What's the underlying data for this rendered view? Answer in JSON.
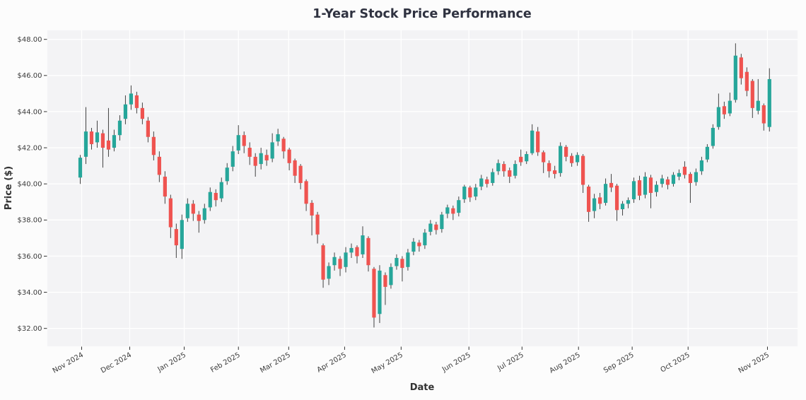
{
  "page": {
    "background": "#fcfcfc"
  },
  "chart_data": {
    "type": "candlestick",
    "title": "1-Year Stock Price Performance",
    "xlabel": "Date",
    "ylabel": "Price ($)",
    "grid": true,
    "legend": null,
    "ylim": [
      31.05,
      48.45
    ],
    "y_ticks": [
      {
        "label": "$32.00",
        "value": 32
      },
      {
        "label": "$34.00",
        "value": 34
      },
      {
        "label": "$36.00",
        "value": 36
      },
      {
        "label": "$38.00",
        "value": 38
      },
      {
        "label": "$40.00",
        "value": 40
      },
      {
        "label": "$42.00",
        "value": 42
      },
      {
        "label": "$44.00",
        "value": 44
      },
      {
        "label": "$46.00",
        "value": 46
      },
      {
        "label": "$48.00",
        "value": 48
      }
    ],
    "x_ticks": [
      {
        "label": "Nov 2024",
        "index": 0.25
      },
      {
        "label": "Dec 2024",
        "index": 8.76
      },
      {
        "label": "Jan 2025",
        "index": 18.4
      },
      {
        "label": "Feb 2025",
        "index": 28.0
      },
      {
        "label": "Mar 2025",
        "index": 36.9
      },
      {
        "label": "Apr 2025",
        "index": 46.8
      },
      {
        "label": "May 2025",
        "index": 56.8
      },
      {
        "label": "Jun 2025",
        "index": 68.8
      },
      {
        "label": "Jul 2025",
        "index": 78.2
      },
      {
        "label": "Aug 2025",
        "index": 88.2
      },
      {
        "label": "Sep 2025",
        "index": 97.7
      },
      {
        "label": "Oct 2025",
        "index": 107.6
      },
      {
        "label": "Nov 2025",
        "index": 121.65
      }
    ],
    "colors": {
      "up": "#26a69a",
      "down": "#ef5350",
      "wick": "#424242",
      "plot_bg": "#f3f3f5",
      "grid": "#ffffff",
      "title": "#2f3240",
      "axis_label": "#333333",
      "tick_text": "#3a3a3a",
      "tick_mark": "#333333"
    },
    "candles": [
      [
        "2024-11-01",
        40.35,
        41.6,
        40.0,
        41.45
      ],
      [
        "2024-11-04",
        41.5,
        44.25,
        41.1,
        42.9
      ],
      [
        "2024-11-08",
        42.9,
        43.1,
        41.9,
        42.2
      ],
      [
        "2024-11-11",
        42.3,
        43.5,
        42.0,
        42.85
      ],
      [
        "2024-11-15",
        42.8,
        43.0,
        40.9,
        42.0
      ],
      [
        "2024-11-18",
        42.4,
        44.2,
        41.5,
        41.9
      ],
      [
        "2024-11-22",
        42.0,
        43.0,
        41.8,
        42.7
      ],
      [
        "2024-11-25",
        42.7,
        43.8,
        42.4,
        43.5
      ],
      [
        "2024-11-29",
        43.6,
        44.9,
        43.3,
        44.4
      ],
      [
        "2024-12-01",
        44.4,
        45.45,
        44.1,
        45.0
      ],
      [
        "2024-12-04",
        44.9,
        45.1,
        43.9,
        44.2
      ],
      [
        "2024-12-07",
        44.2,
        44.5,
        43.3,
        43.6
      ],
      [
        "2024-12-10",
        43.5,
        43.7,
        42.3,
        42.6
      ],
      [
        "2024-12-13",
        42.6,
        42.9,
        41.3,
        41.6
      ],
      [
        "2024-12-16",
        41.5,
        41.8,
        40.1,
        40.5
      ],
      [
        "2024-12-19",
        40.4,
        40.7,
        38.9,
        39.3
      ],
      [
        "2024-12-22",
        39.2,
        39.4,
        37.0,
        37.6
      ],
      [
        "2024-12-25",
        37.5,
        37.8,
        35.9,
        36.6
      ],
      [
        "2024-12-28",
        36.4,
        38.3,
        35.85,
        38.0
      ],
      [
        "2025-01-01",
        38.1,
        39.2,
        37.9,
        38.9
      ],
      [
        "2025-01-04",
        38.9,
        39.1,
        37.95,
        38.35
      ],
      [
        "2025-01-08",
        38.3,
        38.5,
        37.3,
        37.95
      ],
      [
        "2025-01-11",
        38.0,
        38.9,
        37.8,
        38.65
      ],
      [
        "2025-01-15",
        38.7,
        39.8,
        38.5,
        39.55
      ],
      [
        "2025-01-18",
        39.5,
        39.7,
        38.75,
        39.1
      ],
      [
        "2025-01-22",
        39.2,
        40.35,
        39.0,
        40.1
      ],
      [
        "2025-01-25",
        40.15,
        41.15,
        39.95,
        40.9
      ],
      [
        "2025-01-29",
        40.95,
        42.1,
        40.7,
        41.8
      ],
      [
        "2025-02-01",
        41.85,
        43.25,
        41.65,
        42.7
      ],
      [
        "2025-02-04",
        42.7,
        42.9,
        41.7,
        42.1
      ],
      [
        "2025-02-07",
        42.0,
        42.3,
        41.05,
        41.5
      ],
      [
        "2025-02-10",
        41.5,
        41.7,
        40.4,
        41.0
      ],
      [
        "2025-02-13",
        41.1,
        42.0,
        40.8,
        41.7
      ],
      [
        "2025-02-16",
        41.6,
        41.9,
        41.0,
        41.3
      ],
      [
        "2025-02-19",
        41.4,
        42.8,
        41.2,
        42.3
      ],
      [
        "2025-02-23",
        42.35,
        43.05,
        42.1,
        42.75
      ],
      [
        "2025-02-26",
        42.5,
        42.6,
        41.4,
        41.8
      ],
      [
        "2025-03-01",
        41.9,
        42.0,
        40.75,
        41.15
      ],
      [
        "2025-03-04",
        41.3,
        41.4,
        40.05,
        40.45
      ],
      [
        "2025-03-07",
        41.0,
        41.1,
        39.7,
        40.05
      ],
      [
        "2025-03-10",
        40.15,
        40.25,
        38.5,
        38.9
      ],
      [
        "2025-03-13",
        38.95,
        39.1,
        37.15,
        38.25
      ],
      [
        "2025-03-16",
        38.3,
        38.45,
        36.7,
        37.2
      ],
      [
        "2025-03-19",
        36.6,
        36.7,
        34.25,
        34.7
      ],
      [
        "2025-03-22",
        34.75,
        35.65,
        34.4,
        35.45
      ],
      [
        "2025-03-25",
        35.5,
        36.2,
        35.2,
        35.95
      ],
      [
        "2025-03-28",
        35.85,
        36.0,
        34.9,
        35.3
      ],
      [
        "2025-04-01",
        35.4,
        36.5,
        35.1,
        36.2
      ],
      [
        "2025-04-04",
        36.2,
        36.7,
        35.9,
        36.45
      ],
      [
        "2025-04-07",
        36.5,
        36.6,
        35.6,
        36.0
      ],
      [
        "2025-04-10",
        36.1,
        37.65,
        35.9,
        37.15
      ],
      [
        "2025-04-13",
        37.0,
        37.1,
        35.15,
        35.5
      ],
      [
        "2025-04-16",
        35.3,
        35.4,
        32.05,
        32.6
      ],
      [
        "2025-04-19",
        32.8,
        35.5,
        32.3,
        35.2
      ],
      [
        "2025-04-22",
        34.95,
        35.1,
        33.3,
        34.3
      ],
      [
        "2025-04-25",
        34.4,
        35.6,
        34.2,
        35.4
      ],
      [
        "2025-04-28",
        35.45,
        36.1,
        35.25,
        35.9
      ],
      [
        "2025-05-01",
        35.85,
        36.0,
        34.6,
        35.35
      ],
      [
        "2025-05-03",
        35.4,
        36.4,
        35.2,
        36.2
      ],
      [
        "2025-05-06",
        36.25,
        37.0,
        36.05,
        36.8
      ],
      [
        "2025-05-09",
        36.75,
        36.9,
        36.25,
        36.55
      ],
      [
        "2025-05-11",
        36.6,
        37.5,
        36.4,
        37.3
      ],
      [
        "2025-05-14",
        37.35,
        38.0,
        37.15,
        37.8
      ],
      [
        "2025-05-16",
        37.75,
        37.9,
        37.2,
        37.45
      ],
      [
        "2025-05-19",
        37.5,
        38.45,
        37.3,
        38.3
      ],
      [
        "2025-05-22",
        38.35,
        38.85,
        38.1,
        38.7
      ],
      [
        "2025-05-24",
        38.65,
        38.8,
        38.0,
        38.35
      ],
      [
        "2025-05-27",
        38.4,
        39.3,
        38.2,
        39.1
      ],
      [
        "2025-05-29",
        39.15,
        39.95,
        38.95,
        39.85
      ],
      [
        "2025-06-01",
        39.8,
        39.9,
        39.0,
        39.25
      ],
      [
        "2025-06-04",
        39.3,
        40.0,
        39.1,
        39.8
      ],
      [
        "2025-06-07",
        39.85,
        40.5,
        39.65,
        40.3
      ],
      [
        "2025-06-10",
        40.25,
        40.4,
        39.8,
        40.0
      ],
      [
        "2025-06-13",
        40.05,
        40.85,
        39.9,
        40.65
      ],
      [
        "2025-06-16",
        40.7,
        41.35,
        40.5,
        41.15
      ],
      [
        "2025-06-19",
        41.1,
        41.25,
        40.4,
        40.7
      ],
      [
        "2025-06-22",
        40.75,
        40.9,
        40.05,
        40.4
      ],
      [
        "2025-06-25",
        40.45,
        41.3,
        40.3,
        41.1
      ],
      [
        "2025-06-28",
        41.5,
        41.9,
        41.0,
        41.2
      ],
      [
        "2025-07-01",
        41.25,
        41.8,
        41.1,
        41.65
      ],
      [
        "2025-07-04",
        41.7,
        43.3,
        41.6,
        42.95
      ],
      [
        "2025-07-07",
        42.9,
        43.15,
        41.55,
        41.75
      ],
      [
        "2025-07-10",
        41.75,
        41.85,
        40.6,
        41.2
      ],
      [
        "2025-07-13",
        41.15,
        41.3,
        40.35,
        40.7
      ],
      [
        "2025-07-16",
        40.75,
        41.0,
        40.3,
        40.55
      ],
      [
        "2025-07-19",
        40.6,
        42.3,
        40.4,
        42.1
      ],
      [
        "2025-07-22",
        42.05,
        42.15,
        41.25,
        41.5
      ],
      [
        "2025-07-25",
        41.55,
        41.7,
        40.95,
        41.15
      ],
      [
        "2025-07-28",
        41.2,
        41.75,
        41.0,
        41.6
      ],
      [
        "2025-08-01",
        41.55,
        41.65,
        39.5,
        39.95
      ],
      [
        "2025-08-04",
        39.85,
        39.95,
        37.9,
        38.45
      ],
      [
        "2025-08-08",
        38.5,
        39.45,
        38.1,
        39.2
      ],
      [
        "2025-08-11",
        39.25,
        39.5,
        38.6,
        38.9
      ],
      [
        "2025-08-15",
        38.95,
        40.3,
        38.8,
        40.0
      ],
      [
        "2025-08-18",
        40.05,
        40.55,
        39.55,
        39.8
      ],
      [
        "2025-08-22",
        39.9,
        40.0,
        37.95,
        38.55
      ],
      [
        "2025-08-25",
        38.6,
        39.05,
        38.25,
        38.9
      ],
      [
        "2025-08-29",
        38.9,
        39.25,
        38.65,
        39.1
      ],
      [
        "2025-09-01",
        39.15,
        40.35,
        38.95,
        40.15
      ],
      [
        "2025-09-04",
        40.2,
        40.45,
        39.1,
        39.35
      ],
      [
        "2025-09-08",
        39.4,
        40.65,
        39.2,
        40.4
      ],
      [
        "2025-09-11",
        40.35,
        40.5,
        38.65,
        39.5
      ],
      [
        "2025-09-15",
        39.55,
        40.15,
        39.3,
        39.95
      ],
      [
        "2025-09-18",
        40.0,
        40.5,
        39.8,
        40.3
      ],
      [
        "2025-09-22",
        40.25,
        40.4,
        39.7,
        39.95
      ],
      [
        "2025-09-25",
        40.0,
        40.65,
        39.85,
        40.5
      ],
      [
        "2025-09-28",
        40.4,
        40.8,
        40.2,
        40.6
      ],
      [
        "2025-10-01",
        40.95,
        41.25,
        40.3,
        40.5
      ],
      [
        "2025-10-03",
        40.55,
        40.65,
        38.95,
        40.05
      ],
      [
        "2025-10-06",
        40.1,
        40.85,
        39.9,
        40.65
      ],
      [
        "2025-10-08",
        40.7,
        41.5,
        40.5,
        41.3
      ],
      [
        "2025-10-10",
        41.35,
        42.2,
        41.2,
        42.05
      ],
      [
        "2025-10-13",
        42.1,
        43.3,
        41.95,
        43.1
      ],
      [
        "2025-10-15",
        43.15,
        45.0,
        43.0,
        44.25
      ],
      [
        "2025-10-17",
        44.3,
        44.55,
        43.6,
        43.85
      ],
      [
        "2025-10-20",
        43.9,
        45.05,
        43.75,
        44.6
      ],
      [
        "2025-10-22",
        44.65,
        47.78,
        44.5,
        47.1
      ],
      [
        "2025-10-24",
        47.0,
        47.2,
        45.5,
        45.85
      ],
      [
        "2025-10-26",
        46.2,
        46.45,
        44.85,
        45.15
      ],
      [
        "2025-10-28",
        45.7,
        45.8,
        43.65,
        44.2
      ],
      [
        "2025-10-30",
        44.05,
        45.8,
        43.85,
        44.6
      ],
      [
        "2025-11-01",
        44.35,
        44.45,
        42.95,
        43.35
      ],
      [
        "2025-11-04",
        43.15,
        46.4,
        42.9,
        45.8
      ]
    ]
  }
}
